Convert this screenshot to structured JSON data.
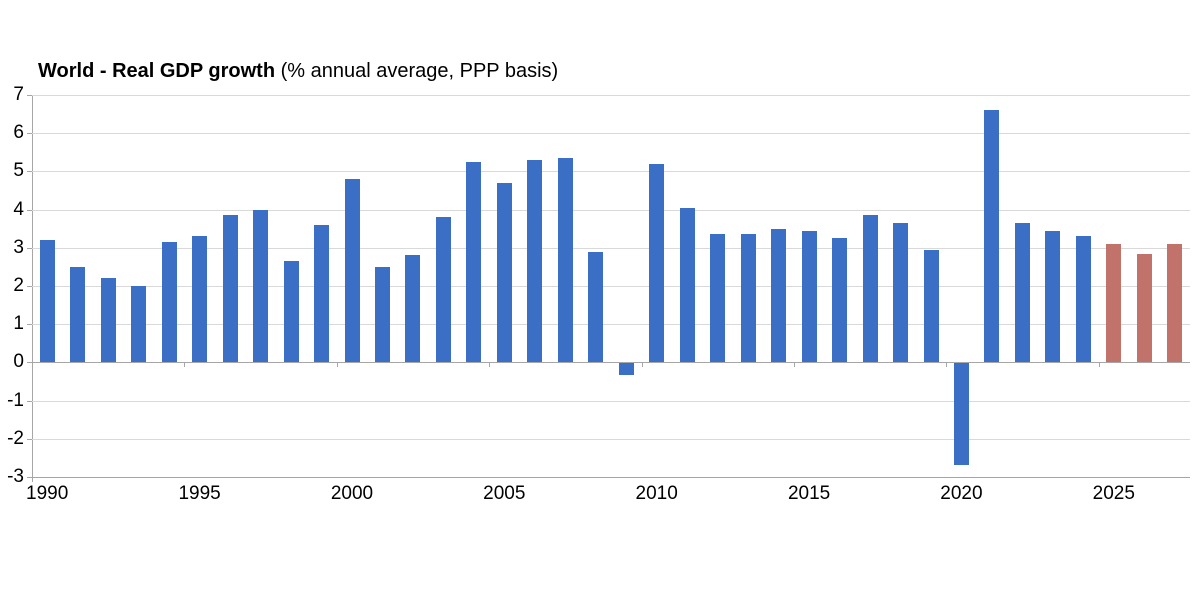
{
  "chart_data": {
    "type": "bar",
    "title": "World - Real GDP growth (% annual average, PPP basis)",
    "title_bold": "World - Real GDP growth",
    "title_suffix": " (% annual average, PPP basis)",
    "categories": [
      1990,
      1991,
      1992,
      1993,
      1994,
      1995,
      1996,
      1997,
      1998,
      1999,
      2000,
      2001,
      2002,
      2003,
      2004,
      2005,
      2006,
      2007,
      2008,
      2009,
      2010,
      2011,
      2012,
      2013,
      2014,
      2015,
      2016,
      2017,
      2018,
      2019,
      2020,
      2021,
      2022,
      2023,
      2024,
      2025,
      2026,
      2027
    ],
    "values": [
      3.2,
      2.5,
      2.2,
      2.0,
      3.15,
      3.3,
      3.85,
      4.0,
      2.65,
      3.6,
      4.8,
      2.5,
      2.8,
      3.8,
      5.25,
      4.7,
      5.3,
      5.35,
      2.9,
      -0.3,
      5.2,
      4.05,
      3.35,
      3.35,
      3.5,
      3.45,
      3.25,
      3.85,
      3.65,
      2.95,
      -2.65,
      6.6,
      3.65,
      3.45,
      3.3,
      3.1,
      2.85,
      3.1
    ],
    "forecast_years": [
      2025,
      2026,
      2027
    ],
    "ylim": [
      -3,
      7
    ],
    "ytick_step": 1,
    "ytick_labels": [
      "7",
      "6",
      "5",
      "4",
      "3",
      "2",
      "1",
      "0",
      "-1",
      "-2",
      "-3"
    ],
    "xtick_years": [
      1990,
      1995,
      2000,
      2005,
      2010,
      2015,
      2020,
      2025
    ],
    "xtick_labels": [
      "1990",
      "1995",
      "2000",
      "2005",
      "2010",
      "2015",
      "2020",
      "2025"
    ],
    "grid": true,
    "legend": "none",
    "xlabel": "",
    "ylabel": "",
    "colors": {
      "actual": "#3b6fc6",
      "forecast": "#c0726b",
      "gridline": "#d9d9d9",
      "axis": "#a6a6a6",
      "text": "#000000",
      "background": "#ffffff"
    }
  }
}
